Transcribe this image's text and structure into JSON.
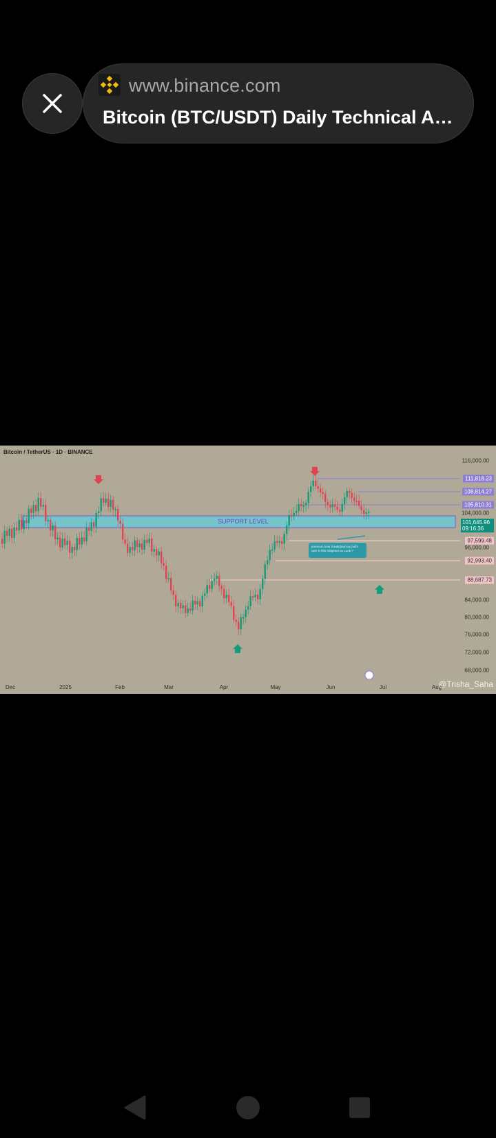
{
  "browser": {
    "url": "www.binance.com",
    "title": "Bitcoin (BTC/USDT) Daily Technical Analysis",
    "brand_icon": "binance-logo-icon",
    "close_icon": "close-icon"
  },
  "chart_image": {
    "title": "Bitcoin / TetherUS · 1D · BINANCE",
    "support_label": "SUPPORT LEVEL",
    "note": "premium bear breakdown as bull's own in this relapsed on Look ?",
    "watermark": "@Trisha_Saha",
    "y_ticks": [
      "116,000.00",
      "104,000.00",
      "96,000.00",
      "84,000.00",
      "80,000.00",
      "76,000.00",
      "72,000.00",
      "68,000.00"
    ],
    "x_ticks": [
      "Dec",
      "2025",
      "Feb",
      "Mar",
      "Apr",
      "May",
      "Jun",
      "Jul",
      "Aug"
    ],
    "levels": {
      "l1": "111,818.23",
      "l2": "108,814.27",
      "l3": "105,810.31",
      "l4": "97,599.48",
      "l5": "92,993.40",
      "l6": "88,687.73"
    },
    "price": "101,645.96",
    "countdown": "09:16:36",
    "colors": {
      "bull": "#159a7a",
      "bear": "#e04452",
      "support": "#6ec7cf",
      "background": "#b1a997"
    }
  },
  "nav": {
    "back_icon": "back-triangle-icon",
    "home_icon": "home-circle-icon",
    "recents_icon": "recents-square-icon"
  }
}
